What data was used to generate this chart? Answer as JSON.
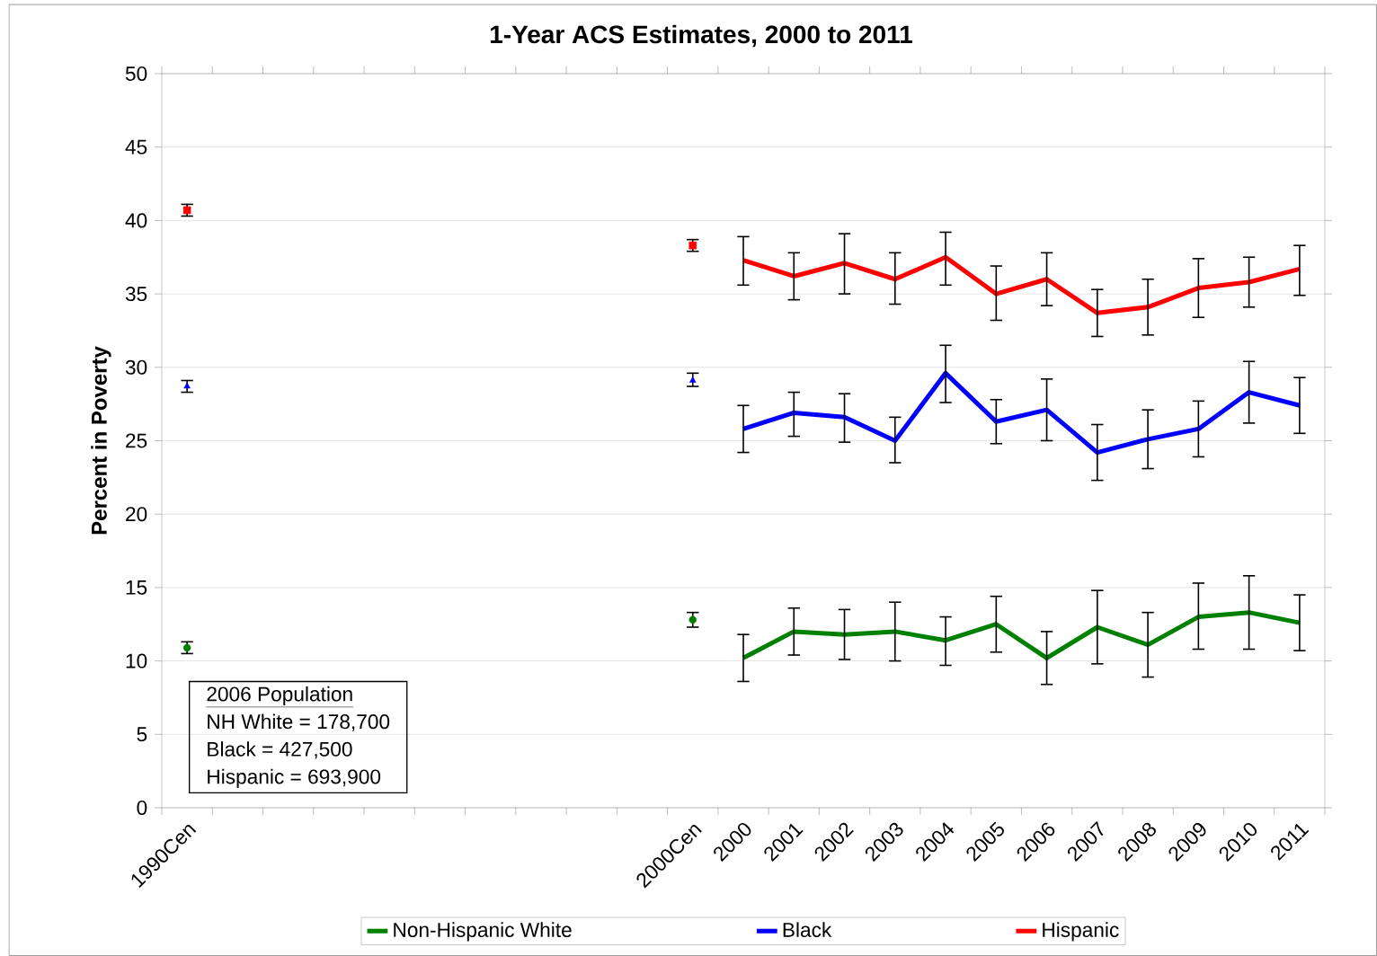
{
  "chart_data": {
    "type": "line",
    "title": "1-Year ACS Estimates, 2000 to 2011",
    "ylabel": "Percent in Poverty",
    "categories": [
      "1990Cen",
      null,
      null,
      null,
      null,
      null,
      null,
      null,
      null,
      null,
      "2000Cen",
      "2000",
      "2001",
      "2002",
      "2003",
      "2004",
      "2005",
      "2006",
      "2007",
      "2008",
      "2009",
      "2010",
      "2011"
    ],
    "ylim": [
      0,
      50
    ],
    "yticks": [
      0,
      5,
      10,
      15,
      20,
      25,
      30,
      35,
      40,
      45,
      50
    ],
    "grid": "y",
    "legend": "bottom",
    "marker": "none",
    "annotations": [
      "2006 Population",
      "NH White = 178,700",
      "Black = 427,500",
      "Hispanic = 693,900"
    ],
    "series": [
      {
        "name": "Non-Hispanic White",
        "color": "#008000",
        "values": [
          null,
          null,
          null,
          null,
          null,
          null,
          null,
          null,
          null,
          null,
          null,
          10.2,
          12.0,
          11.8,
          12.0,
          11.4,
          12.5,
          10.2,
          12.3,
          11.1,
          13.0,
          13.3,
          12.6
        ],
        "errors": [
          null,
          null,
          null,
          null,
          null,
          null,
          null,
          null,
          null,
          null,
          null,
          [
            8.6,
            11.8
          ],
          [
            10.4,
            13.6
          ],
          [
            10.1,
            13.5
          ],
          [
            10.0,
            14.0
          ],
          [
            9.7,
            13.0
          ],
          [
            10.6,
            14.4
          ],
          [
            8.4,
            12.0
          ],
          [
            9.8,
            14.8
          ],
          [
            8.9,
            13.3
          ],
          [
            10.8,
            15.3
          ],
          [
            10.8,
            15.8
          ],
          [
            10.7,
            14.5
          ]
        ]
      },
      {
        "name": "Black",
        "color": "#0000ff",
        "values": [
          null,
          null,
          null,
          null,
          null,
          null,
          null,
          null,
          null,
          null,
          null,
          25.8,
          26.9,
          26.6,
          25.0,
          29.6,
          26.3,
          27.1,
          24.2,
          25.1,
          25.8,
          28.3,
          27.4
        ],
        "errors": [
          null,
          null,
          null,
          null,
          null,
          null,
          null,
          null,
          null,
          null,
          null,
          [
            24.2,
            27.4
          ],
          [
            25.3,
            28.3
          ],
          [
            24.9,
            28.2
          ],
          [
            23.5,
            26.6
          ],
          [
            27.6,
            31.5
          ],
          [
            24.8,
            27.8
          ],
          [
            25.0,
            29.2
          ],
          [
            22.3,
            26.1
          ],
          [
            23.1,
            27.1
          ],
          [
            23.9,
            27.7
          ],
          [
            26.2,
            30.4
          ],
          [
            25.5,
            29.3
          ]
        ]
      },
      {
        "name": "Hispanic",
        "color": "#ff0000",
        "values": [
          null,
          null,
          null,
          null,
          null,
          null,
          null,
          null,
          null,
          null,
          null,
          37.3,
          36.2,
          37.1,
          36.0,
          37.5,
          35.0,
          36.0,
          33.7,
          34.1,
          35.4,
          35.8,
          36.7
        ],
        "errors": [
          null,
          null,
          null,
          null,
          null,
          null,
          null,
          null,
          null,
          null,
          null,
          [
            35.6,
            38.9
          ],
          [
            34.6,
            37.8
          ],
          [
            35.0,
            39.1
          ],
          [
            34.3,
            37.8
          ],
          [
            35.6,
            39.2
          ],
          [
            33.2,
            36.9
          ],
          [
            34.2,
            37.8
          ],
          [
            32.1,
            35.3
          ],
          [
            32.2,
            36.0
          ],
          [
            33.4,
            37.4
          ],
          [
            34.1,
            37.5
          ],
          [
            34.9,
            38.3
          ]
        ]
      },
      {
        "type": "scatter",
        "marker": "circle",
        "color": "#008000",
        "values": [
          10.9,
          null,
          null,
          null,
          null,
          null,
          null,
          null,
          null,
          null,
          12.8,
          null,
          null,
          null,
          null,
          null,
          null,
          null,
          null,
          null,
          null,
          null,
          null
        ],
        "errors": [
          [
            10.5,
            11.3
          ],
          null,
          null,
          null,
          null,
          null,
          null,
          null,
          null,
          null,
          [
            12.3,
            13.3
          ],
          null,
          null,
          null,
          null,
          null,
          null,
          null,
          null,
          null,
          null,
          null,
          null
        ]
      },
      {
        "type": "scatter",
        "marker": "triangle",
        "color": "#0000ff",
        "values": [
          28.7,
          null,
          null,
          null,
          null,
          null,
          null,
          null,
          null,
          null,
          29.1,
          null,
          null,
          null,
          null,
          null,
          null,
          null,
          null,
          null,
          null,
          null,
          null
        ],
        "errors": [
          [
            28.3,
            29.1
          ],
          null,
          null,
          null,
          null,
          null,
          null,
          null,
          null,
          null,
          [
            28.7,
            29.6
          ],
          null,
          null,
          null,
          null,
          null,
          null,
          null,
          null,
          null,
          null,
          null,
          null
        ]
      },
      {
        "type": "scatter",
        "marker": "square",
        "color": "#ff0000",
        "values": [
          40.7,
          null,
          null,
          null,
          null,
          null,
          null,
          null,
          null,
          null,
          38.3,
          null,
          null,
          null,
          null,
          null,
          null,
          null,
          null,
          null,
          null,
          null,
          null
        ],
        "errors": [
          [
            40.3,
            41.1
          ],
          null,
          null,
          null,
          null,
          null,
          null,
          null,
          null,
          null,
          [
            37.9,
            38.7
          ],
          null,
          null,
          null,
          null,
          null,
          null,
          null,
          null,
          null,
          null,
          null,
          null
        ]
      }
    ]
  }
}
